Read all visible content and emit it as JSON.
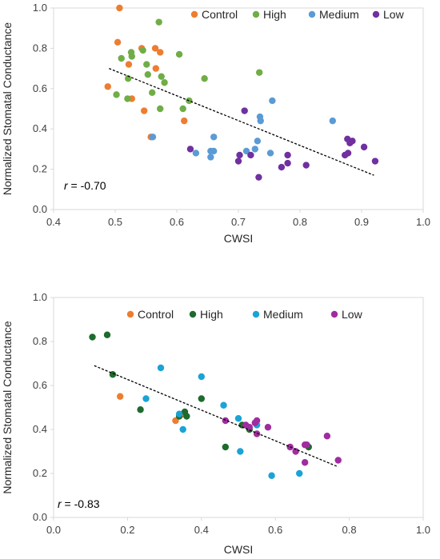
{
  "chart_data": [
    {
      "type": "scatter",
      "xlabel": "CWSI",
      "ylabel": "Normalized Stomatal Conductance",
      "xlim": [
        0.4,
        1.0
      ],
      "ylim": [
        0.0,
        1.0
      ],
      "x_ticks": [
        "0.4",
        "0.5",
        "0.6",
        "0.7",
        "0.8",
        "0.9",
        "1.0"
      ],
      "y_ticks": [
        "0.0",
        "0.2",
        "0.4",
        "0.6",
        "0.8",
        "1.0"
      ],
      "legend_position": "top",
      "r_prefix": "r",
      "r_value": " = -0.70",
      "trendline": {
        "x": [
          0.49,
          0.92
        ],
        "y": [
          0.7,
          0.17
        ]
      },
      "series": [
        {
          "name": "Control",
          "color": "#ED7D31",
          "points": [
            [
              0.507,
              1.0
            ],
            [
              0.504,
              0.83
            ],
            [
              0.488,
              0.61
            ],
            [
              0.522,
              0.72
            ],
            [
              0.543,
              0.8
            ],
            [
              0.565,
              0.8
            ],
            [
              0.566,
              0.7
            ],
            [
              0.573,
              0.78
            ],
            [
              0.527,
              0.55
            ],
            [
              0.547,
              0.49
            ],
            [
              0.558,
              0.36
            ],
            [
              0.612,
              0.44
            ]
          ]
        },
        {
          "name": "High",
          "color": "#70AD47",
          "points": [
            [
              0.571,
              0.93
            ],
            [
              0.51,
              0.75
            ],
            [
              0.526,
              0.78
            ],
            [
              0.527,
              0.76
            ],
            [
              0.545,
              0.79
            ],
            [
              0.551,
              0.72
            ],
            [
              0.553,
              0.67
            ],
            [
              0.575,
              0.66
            ],
            [
              0.58,
              0.63
            ],
            [
              0.521,
              0.65
            ],
            [
              0.502,
              0.57
            ],
            [
              0.52,
              0.55
            ],
            [
              0.56,
              0.58
            ],
            [
              0.573,
              0.5
            ],
            [
              0.61,
              0.5
            ],
            [
              0.604,
              0.77
            ],
            [
              0.645,
              0.65
            ],
            [
              0.734,
              0.68
            ],
            [
              0.62,
              0.54
            ]
          ]
        },
        {
          "name": "Medium",
          "color": "#5B9BD5",
          "points": [
            [
              0.561,
              0.36
            ],
            [
              0.631,
              0.28
            ],
            [
              0.655,
              0.29
            ],
            [
              0.66,
              0.36
            ],
            [
              0.66,
              0.29
            ],
            [
              0.655,
              0.26
            ],
            [
              0.713,
              0.29
            ],
            [
              0.727,
              0.3
            ],
            [
              0.731,
              0.34
            ],
            [
              0.735,
              0.46
            ],
            [
              0.736,
              0.44
            ],
            [
              0.755,
              0.54
            ],
            [
              0.752,
              0.28
            ],
            [
              0.853,
              0.44
            ]
          ]
        },
        {
          "name": "Low",
          "color": "#7030A0",
          "points": [
            [
              0.622,
              0.3
            ],
            [
              0.702,
              0.27
            ],
            [
              0.7,
              0.24
            ],
            [
              0.71,
              0.49
            ],
            [
              0.72,
              0.27
            ],
            [
              0.733,
              0.16
            ],
            [
              0.77,
              0.21
            ],
            [
              0.78,
              0.27
            ],
            [
              0.78,
              0.23
            ],
            [
              0.81,
              0.22
            ],
            [
              0.873,
              0.27
            ],
            [
              0.877,
              0.35
            ],
            [
              0.878,
              0.28
            ],
            [
              0.881,
              0.33
            ],
            [
              0.885,
              0.34
            ],
            [
              0.904,
              0.31
            ],
            [
              0.922,
              0.24
            ]
          ]
        }
      ]
    },
    {
      "type": "scatter",
      "xlabel": "CWSI",
      "ylabel": "Normalized Stomatal Conductance",
      "xlim": [
        0.0,
        1.0
      ],
      "ylim": [
        0.0,
        1.0
      ],
      "x_ticks": [
        "0.0",
        "0.2",
        "0.4",
        "0.6",
        "0.8",
        "1.0"
      ],
      "y_ticks": [
        "0.0",
        "0.2",
        "0.4",
        "0.6",
        "0.8",
        "1.0"
      ],
      "legend_position": "top",
      "r_prefix": "r",
      "r_value": " = -0.83",
      "trendline": {
        "x": [
          0.11,
          0.77
        ],
        "y": [
          0.69,
          0.23
        ]
      },
      "series": [
        {
          "name": "Control",
          "color": "#ED7D31",
          "points": [
            [
              0.18,
              0.55
            ],
            [
              0.33,
              0.44
            ],
            [
              0.35,
              0.47
            ]
          ]
        },
        {
          "name": "High",
          "color": "#1E6B2E",
          "points": [
            [
              0.105,
              0.82
            ],
            [
              0.145,
              0.83
            ],
            [
              0.16,
              0.65
            ],
            [
              0.235,
              0.49
            ],
            [
              0.34,
              0.46
            ],
            [
              0.355,
              0.48
            ],
            [
              0.36,
              0.46
            ],
            [
              0.4,
              0.54
            ],
            [
              0.465,
              0.32
            ],
            [
              0.51,
              0.42
            ],
            [
              0.53,
              0.4
            ],
            [
              0.69,
              0.32
            ]
          ]
        },
        {
          "name": "Medium",
          "color": "#1BA3D6",
          "points": [
            [
              0.25,
              0.54
            ],
            [
              0.29,
              0.68
            ],
            [
              0.34,
              0.47
            ],
            [
              0.35,
              0.4
            ],
            [
              0.4,
              0.64
            ],
            [
              0.46,
              0.51
            ],
            [
              0.5,
              0.45
            ],
            [
              0.505,
              0.3
            ],
            [
              0.55,
              0.42
            ],
            [
              0.59,
              0.19
            ],
            [
              0.665,
              0.2
            ]
          ]
        },
        {
          "name": "Low",
          "color": "#A02CA0",
          "points": [
            [
              0.465,
              0.44
            ],
            [
              0.52,
              0.42
            ],
            [
              0.53,
              0.41
            ],
            [
              0.545,
              0.43
            ],
            [
              0.55,
              0.44
            ],
            [
              0.55,
              0.38
            ],
            [
              0.58,
              0.41
            ],
            [
              0.64,
              0.32
            ],
            [
              0.655,
              0.3
            ],
            [
              0.68,
              0.33
            ],
            [
              0.685,
              0.33
            ],
            [
              0.68,
              0.25
            ],
            [
              0.74,
              0.37
            ],
            [
              0.77,
              0.26
            ]
          ]
        }
      ]
    }
  ]
}
